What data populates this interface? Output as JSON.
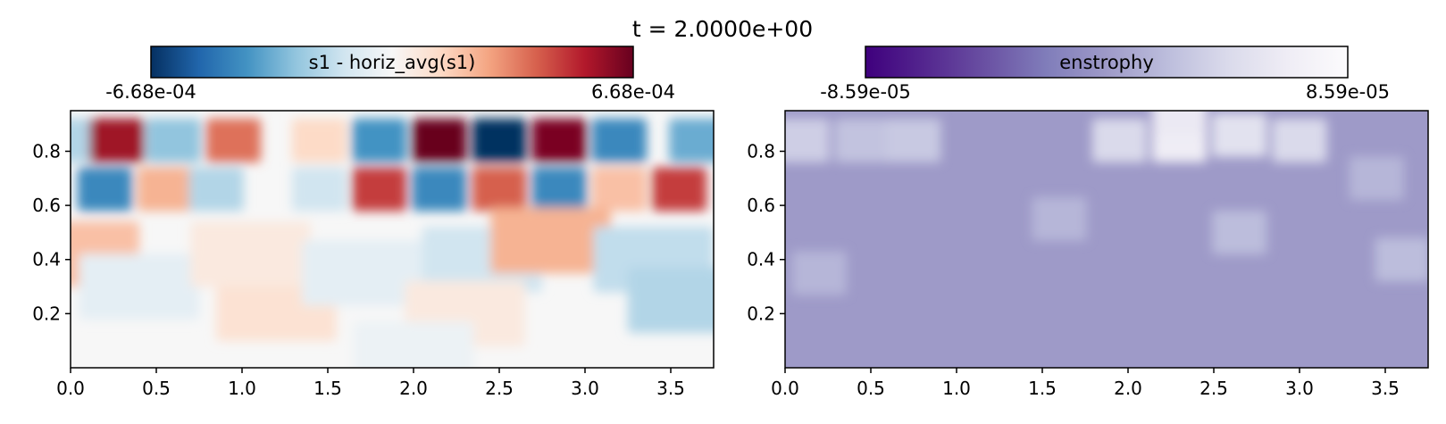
{
  "figure": {
    "title": "t = 2.0000e+00"
  },
  "chart_data": [
    {
      "type": "heatmap",
      "field": "s1 - horiz_avg(s1)",
      "colorbar": {
        "label": "s1 - horiz_avg(s1)",
        "min_label": "-6.68e-04",
        "max_label": "6.68e-04",
        "vmin": -0.000668,
        "vmax": 0.000668,
        "colormap": "RdBu_r",
        "stops": [
          "#053061",
          "#2166ac",
          "#4393c3",
          "#92c5de",
          "#d1e5f0",
          "#f7f7f7",
          "#fddbc7",
          "#f4a582",
          "#d6604d",
          "#b2182b",
          "#67001f"
        ]
      },
      "xlim": [
        0,
        3.75
      ],
      "ylim": [
        0,
        0.95
      ],
      "xticks": [
        0.0,
        0.5,
        1.0,
        1.5,
        2.0,
        2.5,
        3.0,
        3.5
      ],
      "xtick_labels": [
        "0.0",
        "0.5",
        "1.0",
        "1.5",
        "2.0",
        "2.5",
        "3.0",
        "3.5"
      ],
      "yticks": [
        0.2,
        0.4,
        0.6,
        0.8
      ],
      "ytick_labels": [
        "0.2",
        "0.4",
        "0.6",
        "0.8"
      ],
      "upper_row_cells": [
        {
          "x": 0.0,
          "y": 0.84,
          "v": -0.3
        },
        {
          "x": 0.27,
          "y": 0.84,
          "v": 0.85
        },
        {
          "x": 0.6,
          "y": 0.84,
          "v": -0.4
        },
        {
          "x": 0.95,
          "y": 0.84,
          "v": 0.55
        },
        {
          "x": 1.45,
          "y": 0.84,
          "v": 0.2
        },
        {
          "x": 1.8,
          "y": 0.84,
          "v": -0.6
        },
        {
          "x": 2.15,
          "y": 0.84,
          "v": 1.0
        },
        {
          "x": 2.5,
          "y": 0.84,
          "v": -1.0
        },
        {
          "x": 2.85,
          "y": 0.84,
          "v": 0.95
        },
        {
          "x": 3.2,
          "y": 0.84,
          "v": -0.65
        },
        {
          "x": 3.65,
          "y": 0.84,
          "v": -0.5
        }
      ],
      "middle_row_cells": [
        {
          "x": 0.2,
          "y": 0.66,
          "v": -0.65
        },
        {
          "x": 0.55,
          "y": 0.66,
          "v": 0.35
        },
        {
          "x": 0.85,
          "y": 0.66,
          "v": -0.3
        },
        {
          "x": 1.45,
          "y": 0.66,
          "v": -0.2
        },
        {
          "x": 1.8,
          "y": 0.66,
          "v": 0.7
        },
        {
          "x": 2.15,
          "y": 0.66,
          "v": -0.65
        },
        {
          "x": 2.5,
          "y": 0.66,
          "v": 0.6
        },
        {
          "x": 2.85,
          "y": 0.66,
          "v": -0.65
        },
        {
          "x": 3.2,
          "y": 0.66,
          "v": 0.3
        },
        {
          "x": 3.55,
          "y": 0.66,
          "v": 0.7
        }
      ],
      "lower_region_cells": [
        {
          "x": 0.05,
          "y": 0.42,
          "v": 0.3
        },
        {
          "x": 0.4,
          "y": 0.3,
          "v": -0.1
        },
        {
          "x": 1.2,
          "y": 0.22,
          "v": 0.15
        },
        {
          "x": 1.05,
          "y": 0.42,
          "v": 0.1
        },
        {
          "x": 1.7,
          "y": 0.35,
          "v": -0.1
        },
        {
          "x": 2.4,
          "y": 0.4,
          "v": -0.2
        },
        {
          "x": 2.8,
          "y": 0.47,
          "v": 0.35
        },
        {
          "x": 3.4,
          "y": 0.4,
          "v": -0.25
        },
        {
          "x": 3.6,
          "y": 0.25,
          "v": -0.3
        },
        {
          "x": 2.3,
          "y": 0.2,
          "v": 0.1
        },
        {
          "x": 2.0,
          "y": 0.05,
          "v": -0.06
        }
      ]
    },
    {
      "type": "heatmap",
      "field": "enstrophy",
      "colorbar": {
        "label": "enstrophy",
        "min_label": "-8.59e-05",
        "max_label": "8.59e-05",
        "vmin": -8.59e-05,
        "vmax": 8.59e-05,
        "colormap": "Purples_r",
        "stops": [
          "#3f007d",
          "#54278f",
          "#6a51a3",
          "#807dba",
          "#9e9ac8",
          "#bcbddc",
          "#dadaeb",
          "#efedf5",
          "#fcfbfd"
        ]
      },
      "xlim": [
        0,
        3.75
      ],
      "ylim": [
        0,
        0.95
      ],
      "xticks": [
        0.0,
        0.5,
        1.0,
        1.5,
        2.0,
        2.5,
        3.0,
        3.5
      ],
      "xtick_labels": [
        "0.0",
        "0.5",
        "1.0",
        "1.5",
        "2.0",
        "2.5",
        "3.0",
        "3.5"
      ],
      "yticks": [
        0.2,
        0.4,
        0.6,
        0.8
      ],
      "ytick_labels": [
        "0.2",
        "0.4",
        "0.6",
        "0.8"
      ],
      "background_color": "#9e9ac8",
      "highlight_cells": [
        {
          "x": 0.1,
          "y": 0.84,
          "v": 0.08
        },
        {
          "x": 0.45,
          "y": 0.84,
          "v": 0.06
        },
        {
          "x": 0.75,
          "y": 0.84,
          "v": 0.07
        },
        {
          "x": 1.95,
          "y": 0.84,
          "v": 0.1
        },
        {
          "x": 2.3,
          "y": 0.84,
          "v": 0.15
        },
        {
          "x": 2.65,
          "y": 0.86,
          "v": 0.12
        },
        {
          "x": 3.0,
          "y": 0.84,
          "v": 0.1
        },
        {
          "x": 2.3,
          "y": 0.94,
          "v": 0.14
        },
        {
          "x": 3.45,
          "y": 0.7,
          "v": 0.04
        },
        {
          "x": 2.65,
          "y": 0.5,
          "v": 0.05
        },
        {
          "x": 1.6,
          "y": 0.55,
          "v": 0.04
        },
        {
          "x": 0.2,
          "y": 0.35,
          "v": 0.04
        },
        {
          "x": 3.6,
          "y": 0.4,
          "v": 0.05
        }
      ]
    }
  ]
}
